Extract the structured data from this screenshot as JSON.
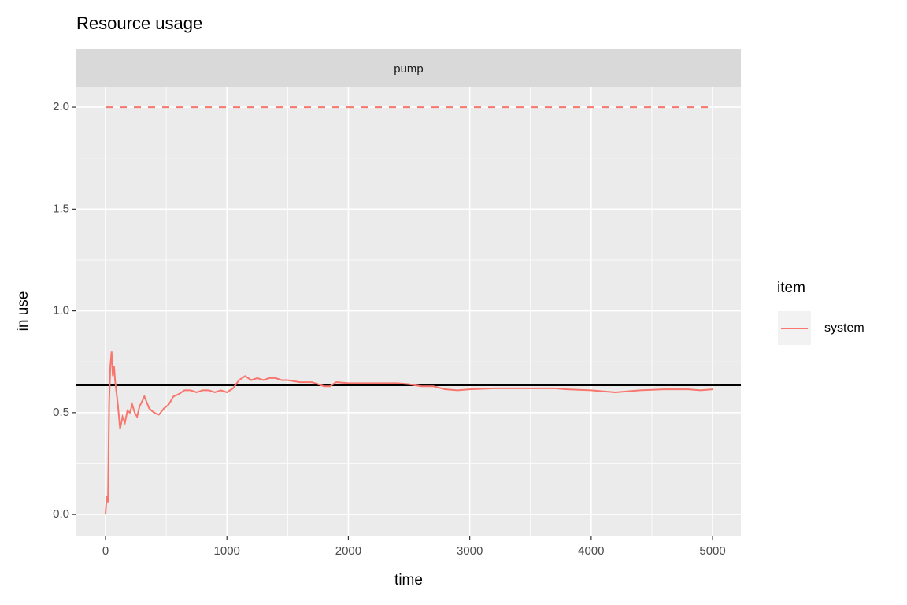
{
  "chart_data": {
    "type": "line",
    "title": "Resource usage",
    "facet": "pump",
    "xlabel": "time",
    "ylabel": "in use",
    "legend_title": "item",
    "legend_position": "right",
    "xlim": [
      -240,
      5233
    ],
    "ylim": [
      -0.104,
      2.097
    ],
    "xticks": [
      0,
      1000,
      2000,
      3000,
      4000,
      5000
    ],
    "yticks": [
      {
        "value": 0,
        "label": "0.0"
      },
      {
        "value": 0.5,
        "label": "0.5"
      },
      {
        "value": 1,
        "label": "1.0"
      },
      {
        "value": 1.5,
        "label": "1.5"
      },
      {
        "value": 2,
        "label": "2.0"
      }
    ],
    "grid": true,
    "series": [
      {
        "name": "system",
        "color": "#F8766D",
        "x": [
          0,
          10,
          20,
          30,
          40,
          50,
          60,
          70,
          80,
          100,
          120,
          140,
          160,
          180,
          200,
          220,
          240,
          260,
          280,
          320,
          360,
          400,
          440,
          480,
          520,
          560,
          600,
          650,
          700,
          750,
          800,
          850,
          900,
          950,
          1000,
          1050,
          1100,
          1150,
          1200,
          1250,
          1300,
          1350,
          1400,
          1450,
          1500,
          1600,
          1700,
          1800,
          1850,
          1900,
          2000,
          2200,
          2400,
          2500,
          2600,
          2700,
          2800,
          2900,
          3000,
          3200,
          3400,
          3600,
          3700,
          3800,
          4000,
          4200,
          4400,
          4600,
          4800,
          4900,
          5000
        ],
        "values": [
          0.0,
          0.09,
          0.06,
          0.55,
          0.73,
          0.8,
          0.68,
          0.73,
          0.65,
          0.55,
          0.42,
          0.48,
          0.45,
          0.51,
          0.5,
          0.54,
          0.5,
          0.48,
          0.53,
          0.58,
          0.52,
          0.5,
          0.49,
          0.52,
          0.54,
          0.58,
          0.59,
          0.61,
          0.61,
          0.6,
          0.61,
          0.61,
          0.6,
          0.61,
          0.6,
          0.62,
          0.66,
          0.68,
          0.66,
          0.67,
          0.66,
          0.67,
          0.67,
          0.66,
          0.66,
          0.65,
          0.65,
          0.63,
          0.63,
          0.65,
          0.645,
          0.645,
          0.645,
          0.64,
          0.63,
          0.63,
          0.615,
          0.61,
          0.615,
          0.62,
          0.62,
          0.62,
          0.62,
          0.615,
          0.61,
          0.6,
          0.61,
          0.615,
          0.615,
          0.61,
          0.615
        ]
      }
    ],
    "reference_lines": [
      {
        "value": 2,
        "style": "dashed",
        "color": "#F8766D"
      },
      {
        "value": 0.635,
        "style": "solid",
        "color": "#000000"
      }
    ]
  }
}
